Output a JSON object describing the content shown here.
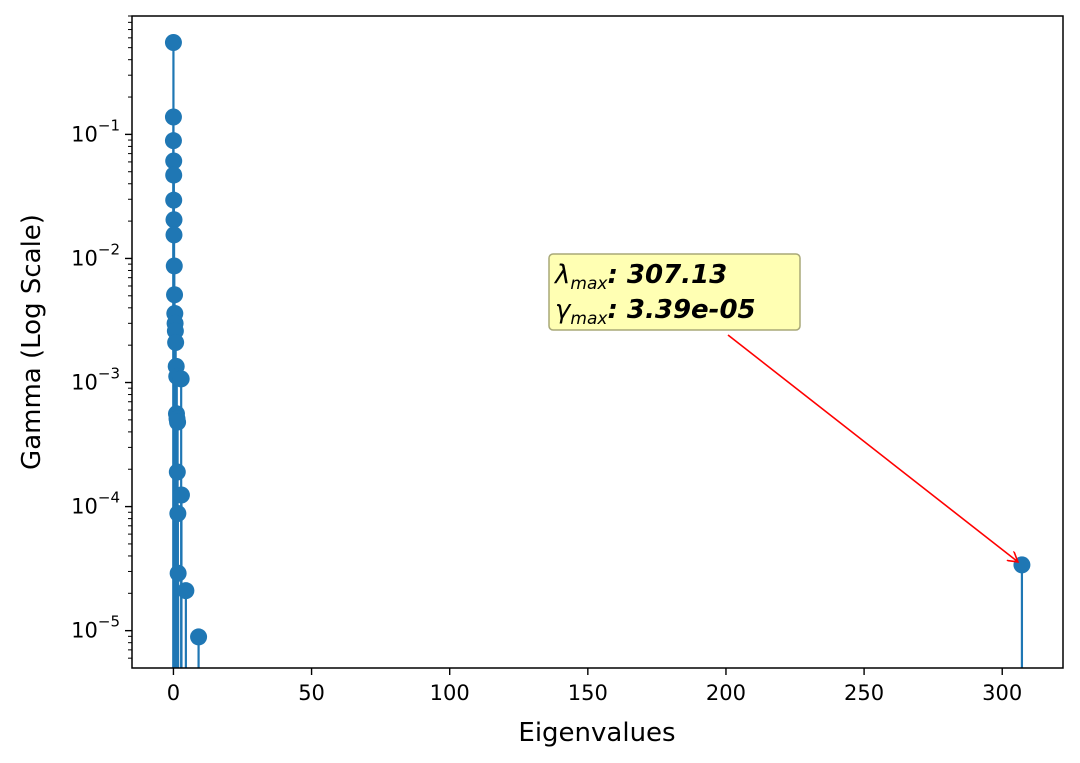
{
  "chart_data": {
    "type": "stem",
    "xlabel": "Eigenvalues",
    "ylabel": "Gamma (Log Scale)",
    "yscale": "log",
    "xlim": [
      -15,
      322
    ],
    "ylim": [
      5e-06,
      0.9
    ],
    "grid": false,
    "color": "#1f77b4",
    "xticks": [
      0,
      50,
      100,
      150,
      200,
      250,
      300
    ],
    "yticks": [
      {
        "exp": "-5",
        "value": 1e-05
      },
      {
        "exp": "-4",
        "value": 0.0001
      },
      {
        "exp": "-3",
        "value": 0.001
      },
      {
        "exp": "-2",
        "value": 0.01
      },
      {
        "exp": "-1",
        "value": 0.1
      }
    ],
    "points": [
      {
        "x": 0.0,
        "y": 0.55
      },
      {
        "x": 0.0,
        "y": 0.138
      },
      {
        "x": 0.0,
        "y": 0.089
      },
      {
        "x": 0.1,
        "y": 0.061
      },
      {
        "x": 0.1,
        "y": 0.047
      },
      {
        "x": 0.1,
        "y": 0.0295
      },
      {
        "x": 0.2,
        "y": 0.0205
      },
      {
        "x": 0.2,
        "y": 0.0155
      },
      {
        "x": 0.3,
        "y": 0.0087
      },
      {
        "x": 0.4,
        "y": 0.0051
      },
      {
        "x": 0.5,
        "y": 0.0036
      },
      {
        "x": 0.6,
        "y": 0.003
      },
      {
        "x": 0.7,
        "y": 0.0026
      },
      {
        "x": 0.8,
        "y": 0.0021
      },
      {
        "x": 1.0,
        "y": 0.00135
      },
      {
        "x": 1.2,
        "y": 0.00112
      },
      {
        "x": 2.8,
        "y": 0.00107
      },
      {
        "x": 1.1,
        "y": 0.00056
      },
      {
        "x": 1.3,
        "y": 0.00051
      },
      {
        "x": 1.5,
        "y": 0.00048
      },
      {
        "x": 1.4,
        "y": 0.00019
      },
      {
        "x": 2.9,
        "y": 0.000124
      },
      {
        "x": 1.6,
        "y": 8.8e-05
      },
      {
        "x": 1.7,
        "y": 2.9e-05
      },
      {
        "x": 4.5,
        "y": 2.1e-05
      },
      {
        "x": 9.1,
        "y": 8.9e-06
      },
      {
        "x": 307.13,
        "y": 3.39e-05
      }
    ],
    "annotation": {
      "line1_symbol": "λ",
      "line1_sub": "max",
      "line1_value": ": 307.13",
      "line2_symbol": "γ",
      "line2_sub": "max",
      "line2_value": ": 3.39e-05",
      "target": {
        "x": 307.13,
        "y": 3.39e-05
      },
      "box_fill": "#ffffb3",
      "box_stroke": "#a8a878",
      "arrow_color": "#ff0000"
    }
  }
}
